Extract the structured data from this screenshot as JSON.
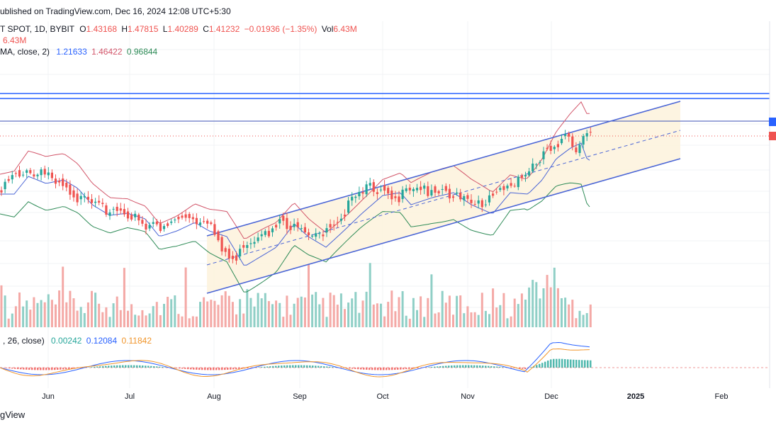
{
  "header": {
    "published": "ublished on TradingView.com, Dec 16, 2024 12:08 UTC+5:30",
    "symbol_line": {
      "symbol": "T SPOT, 1D, BYBIT",
      "o_label": "O",
      "o": "1.43168",
      "h_label": "H",
      "h": "1.47815",
      "l_label": "L",
      "l": "1.40289",
      "c_label": "C",
      "c": "1.41232",
      "change": "−0.01936 (−1.35%)",
      "vol_label": "Vol",
      "vol": "6.43M"
    },
    "vol_line": "6.43M",
    "bb_line": {
      "name": "MA, close, 2)",
      "v1": "1.21633",
      "v2": "1.46422",
      "v3": "0.96844"
    },
    "macd_line": {
      "name": ", 26, close)",
      "v1": "0.00242",
      "v2": "0.12084",
      "v3": "0.11842"
    }
  },
  "footer": {
    "logo": "gView"
  },
  "colors": {
    "up": "#26a69a",
    "down": "#ef5350",
    "upVol": "#8fcfc6",
    "downVol": "#f4a9a6",
    "channel": "#4a65d6",
    "bbUpper": "#d2566a",
    "bbMid": "#4a65d6",
    "bbLower": "#2e8b57",
    "fill": "#fdf2dc",
    "macd": "#2962ff",
    "signal": "#f0952b"
  },
  "chart_data": {
    "type": "candlestick",
    "x_ticks": [
      "Jun",
      "Jul",
      "Aug",
      "Sep",
      "Oct",
      "Nov",
      "Dec",
      "2025",
      "Feb"
    ],
    "last_close": 1.41232,
    "indicators": [
      "Bollinger Bands",
      "Volume",
      "MACD"
    ]
  }
}
